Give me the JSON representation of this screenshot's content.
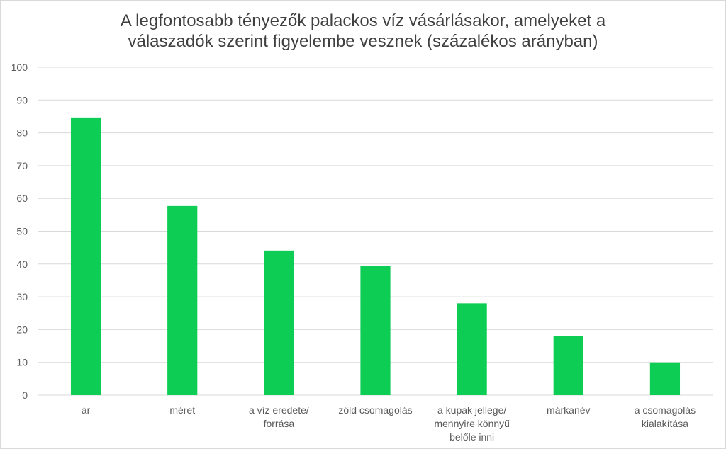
{
  "chart_data": {
    "type": "bar",
    "title_lines": [
      "A legfontosabb tényezők palackos víz vásárlásakor, amelyeket a",
      "válaszadók szerint figyelembe vesznek (százalékos arányban)"
    ],
    "categories": [
      [
        "ár"
      ],
      [
        "méret"
      ],
      [
        "a víz eredete/",
        "forrása"
      ],
      [
        "zöld csomagolás"
      ],
      [
        "a kupak jellege/",
        "mennyire könnyű",
        "belőle inni"
      ],
      [
        "márkanév"
      ],
      [
        "a csomagolás",
        "kialakítása"
      ]
    ],
    "values": [
      84.7,
      57.7,
      44.1,
      39.5,
      28.0,
      18.0,
      10.0
    ],
    "ylim": [
      0,
      100
    ],
    "yticks": [
      0,
      10,
      20,
      30,
      40,
      50,
      60,
      70,
      80,
      90,
      100
    ],
    "xlabel": "",
    "ylabel": "",
    "grid": true,
    "legend": "none",
    "bar_color": "#0ecd55",
    "grid_color": "#d9d9d9"
  }
}
